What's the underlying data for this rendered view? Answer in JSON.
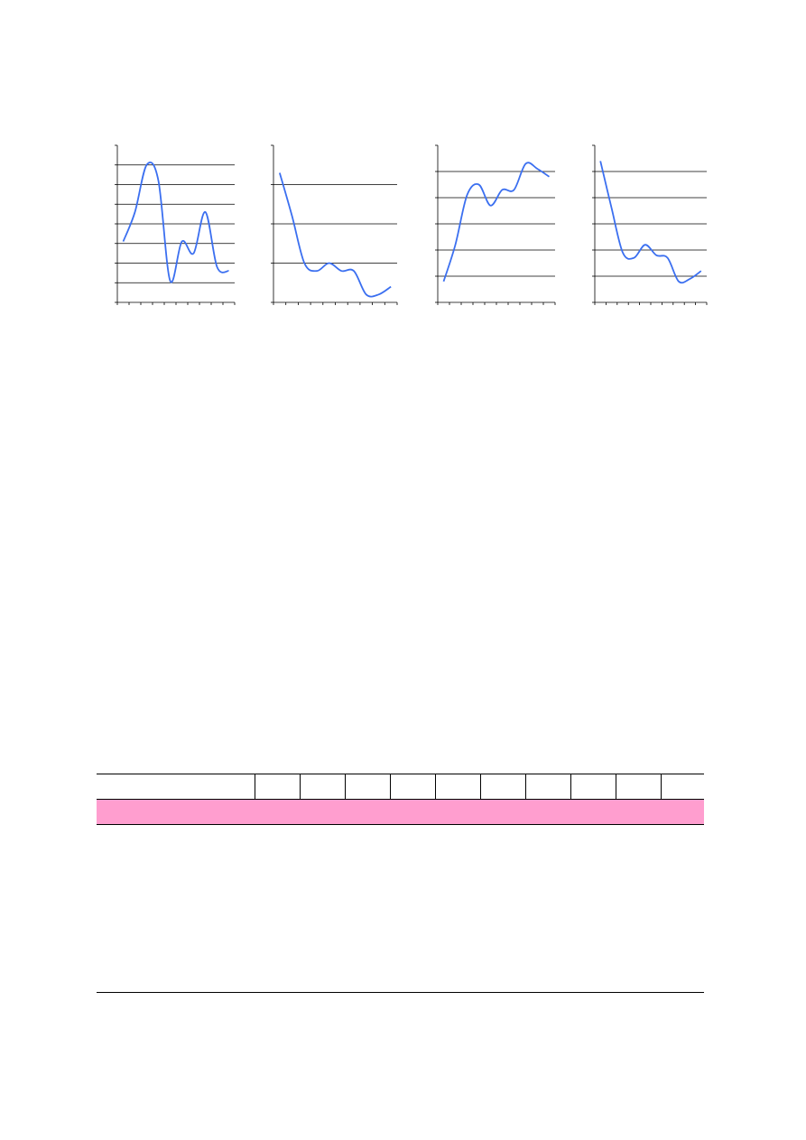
{
  "chart_data": [
    {
      "type": "line",
      "categories": [
        null,
        null,
        null,
        null,
        null,
        null,
        null,
        null,
        null,
        null
      ],
      "values": [
        3.1,
        4.6,
        7.0,
        6.2,
        1.1,
        3.1,
        2.5,
        4.6,
        1.8,
        1.6
      ],
      "color": "#3b6ff0",
      "ylim": [
        0,
        8
      ],
      "yticks": [
        0,
        1,
        2,
        3,
        4,
        5,
        6,
        7,
        8
      ],
      "grid": true
    },
    {
      "type": "line",
      "categories": [
        null,
        null,
        null,
        null,
        null,
        null,
        null,
        null,
        null,
        null
      ],
      "values": [
        3.3,
        2.2,
        1.0,
        0.8,
        1.0,
        0.8,
        0.8,
        0.2,
        0.2,
        0.4
      ],
      "color": "#3b6ff0",
      "ylim": [
        0,
        4
      ],
      "yticks": [
        0,
        1,
        2,
        3,
        4
      ],
      "grid": true
    },
    {
      "type": "line",
      "categories": [
        null,
        null,
        null,
        null,
        null,
        null,
        null,
        null,
        null,
        null
      ],
      "values": [
        0.8,
        2.2,
        4.1,
        4.5,
        3.7,
        4.3,
        4.3,
        5.3,
        5.1,
        4.8
      ],
      "color": "#3b6ff0",
      "ylim": [
        0,
        6
      ],
      "yticks": [
        0,
        1,
        2,
        3,
        4,
        5,
        6
      ],
      "grid": true
    },
    {
      "type": "line",
      "categories": [
        null,
        null,
        null,
        null,
        null,
        null,
        null,
        null,
        null,
        null
      ],
      "values": [
        5.4,
        3.6,
        1.9,
        1.7,
        2.2,
        1.8,
        1.7,
        0.8,
        0.9,
        1.2
      ],
      "color": "#3b6ff0",
      "ylim": [
        0,
        6
      ],
      "yticks": [
        0,
        1,
        2,
        3,
        4,
        5,
        6
      ],
      "grid": true
    }
  ]
}
